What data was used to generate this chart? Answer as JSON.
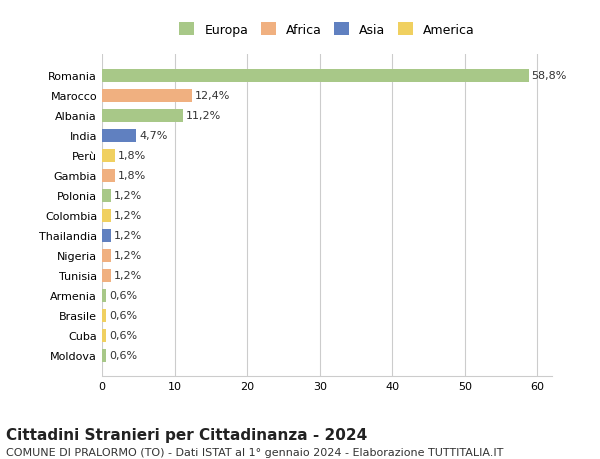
{
  "countries": [
    "Romania",
    "Marocco",
    "Albania",
    "India",
    "Perù",
    "Gambia",
    "Polonia",
    "Colombia",
    "Thailandia",
    "Nigeria",
    "Tunisia",
    "Armenia",
    "Brasile",
    "Cuba",
    "Moldova"
  ],
  "values": [
    58.8,
    12.4,
    11.2,
    4.7,
    1.8,
    1.8,
    1.2,
    1.2,
    1.2,
    1.2,
    1.2,
    0.6,
    0.6,
    0.6,
    0.6
  ],
  "labels": [
    "58,8%",
    "12,4%",
    "11,2%",
    "4,7%",
    "1,8%",
    "1,8%",
    "1,2%",
    "1,2%",
    "1,2%",
    "1,2%",
    "1,2%",
    "0,6%",
    "0,6%",
    "0,6%",
    "0,6%"
  ],
  "continents": [
    "Europa",
    "Africa",
    "Europa",
    "Asia",
    "America",
    "Africa",
    "Europa",
    "America",
    "Asia",
    "Africa",
    "Africa",
    "Europa",
    "America",
    "America",
    "Europa"
  ],
  "continent_colors": {
    "Europa": "#a8c888",
    "Africa": "#f0b080",
    "Asia": "#6080c0",
    "America": "#f0d060"
  },
  "legend_order": [
    "Europa",
    "Africa",
    "Asia",
    "America"
  ],
  "bg_color": "#ffffff",
  "grid_color": "#cccccc",
  "title": "Cittadini Stranieri per Cittadinanza - 2024",
  "subtitle": "COMUNE DI PRALORMO (TO) - Dati ISTAT al 1° gennaio 2024 - Elaborazione TUTTITALIA.IT",
  "xlim": [
    0,
    62
  ],
  "xticks": [
    0,
    10,
    20,
    30,
    40,
    50,
    60
  ],
  "label_fontsize": 8,
  "tick_fontsize": 8,
  "title_fontsize": 11,
  "subtitle_fontsize": 8
}
